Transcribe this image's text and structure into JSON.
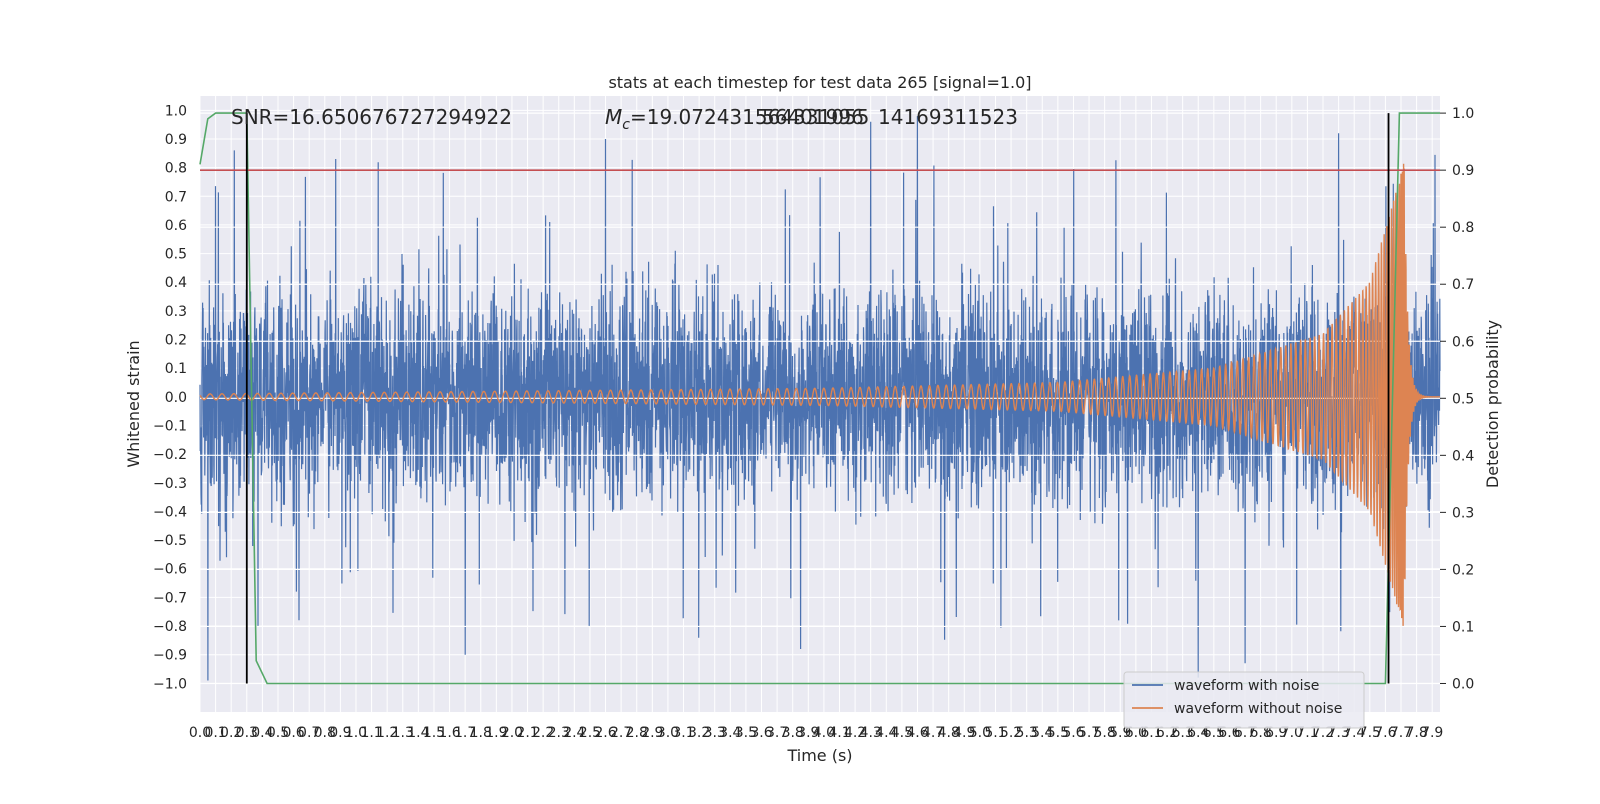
{
  "chart_data": {
    "type": "line",
    "title": "stats at each timestep for test data 265 [signal=1.0]",
    "xlabel": "Time (s)",
    "ylabel_left": "Whitened strain",
    "ylabel_right": "Detection probability",
    "xlim": [
      0.0,
      7.95
    ],
    "ylim_left": [
      -1.1,
      1.05
    ],
    "ylim_right": [
      -0.05,
      1.03
    ],
    "x_ticks": [
      "0.0",
      "0.1",
      "0.2",
      "0.3",
      "0.4",
      "0.5",
      "0.6",
      "0.7",
      "0.8",
      "0.9",
      "1.0",
      "1.1",
      "1.2",
      "1.3",
      "1.4",
      "1.5",
      "1.6",
      "1.7",
      "1.8",
      "1.9",
      "2.0",
      "2.1",
      "2.2",
      "2.3",
      "2.4",
      "2.5",
      "2.6",
      "2.7",
      "2.8",
      "2.9",
      "3.0",
      "3.1",
      "3.2",
      "3.3",
      "3.4",
      "3.5",
      "3.6",
      "3.7",
      "3.8",
      "3.9",
      "4.0",
      "4.1",
      "4.2",
      "4.3",
      "4.4",
      "4.5",
      "4.6",
      "4.7",
      "4.8",
      "4.9",
      "5.0",
      "5.1",
      "5.2",
      "5.3",
      "5.4",
      "5.5",
      "5.6",
      "5.7",
      "5.8",
      "5.9",
      "6.0",
      "6.1",
      "6.2",
      "6.3",
      "6.4",
      "6.5",
      "6.6",
      "6.7",
      "6.8",
      "6.9",
      "7.0",
      "7.1",
      "7.2",
      "7.3",
      "7.4",
      "7.5",
      "7.6",
      "7.7",
      "7.8",
      "7.9"
    ],
    "y_ticks_left": [
      "1.0",
      "0.9",
      "0.8",
      "0.7",
      "0.6",
      "0.5",
      "0.4",
      "0.3",
      "0.2",
      "0.1",
      "0.0",
      "-0.1",
      "-0.2",
      "-0.3",
      "-0.4",
      "-0.5",
      "-0.6",
      "-0.7",
      "-0.8",
      "-0.9",
      "-1.0"
    ],
    "y_ticks_right": [
      "1.0",
      "0.9",
      "0.8",
      "0.7",
      "0.6",
      "0.5",
      "0.4",
      "0.3",
      "0.2",
      "0.1",
      "0.0"
    ],
    "annotations": {
      "snr": "SNR=16.650676727294922",
      "mc": "=19.072431564331055",
      "mc_prefix": "M",
      "mc_sub": "c",
      "mc_overlap": "56401996",
      "mc_overlap2": "14169311523"
    },
    "threshold_right": 0.9,
    "vertical_markers_s": [
      0.3,
      7.62
    ],
    "series": [
      {
        "name": "waveform with noise",
        "color": "#4c72b0",
        "description_values": "noise envelope roughly -0.6..0.65 with spikes to about +/-0.9",
        "peak_spikes": [
          {
            "x": 0.05,
            "y": -0.99
          },
          {
            "x": 0.22,
            "y": 0.86
          },
          {
            "x": 0.87,
            "y": 0.83
          },
          {
            "x": 1.7,
            "y": -0.9
          },
          {
            "x": 2.6,
            "y": 0.9
          },
          {
            "x": 3.85,
            "y": -0.88
          },
          {
            "x": 4.3,
            "y": 0.96
          },
          {
            "x": 4.6,
            "y": 0.98
          },
          {
            "x": 6.4,
            "y": -0.98
          },
          {
            "x": 6.7,
            "y": -0.93
          },
          {
            "x": 7.3,
            "y": 0.92
          }
        ]
      },
      {
        "name": "waveform without noise",
        "color": "#dd8452",
        "amplitude_points": [
          {
            "x": 0.0,
            "y": 0.01
          },
          {
            "x": 2.0,
            "y": 0.02
          },
          {
            "x": 4.0,
            "y": 0.03
          },
          {
            "x": 5.5,
            "y": 0.05
          },
          {
            "x": 6.5,
            "y": 0.1
          },
          {
            "x": 7.2,
            "y": 0.22
          },
          {
            "x": 7.5,
            "y": 0.4
          },
          {
            "x": 7.65,
            "y": 0.68
          },
          {
            "x": 7.72,
            "y": 0.82
          }
        ],
        "merger_time_s": 7.72
      },
      {
        "name": "detection probability",
        "color": "#55a868",
        "axis": "right",
        "points": [
          {
            "x": 0.0,
            "y": 0.91
          },
          {
            "x": 0.05,
            "y": 0.99
          },
          {
            "x": 0.1,
            "y": 1.0
          },
          {
            "x": 0.3,
            "y": 1.0
          },
          {
            "x": 0.36,
            "y": 0.04
          },
          {
            "x": 0.43,
            "y": 0.0
          },
          {
            "x": 7.6,
            "y": 0.0
          },
          {
            "x": 7.65,
            "y": 0.55
          },
          {
            "x": 7.69,
            "y": 1.0
          },
          {
            "x": 7.95,
            "y": 1.0
          }
        ]
      }
    ],
    "legend": {
      "placement": "lower-right",
      "entries": [
        "waveform with noise",
        "waveform without noise"
      ]
    },
    "grid": true
  },
  "colors": {
    "axes_bg": "#eaeaf2",
    "grid": "#ffffff",
    "threshold": "#c44e52",
    "marker": "#000000"
  }
}
